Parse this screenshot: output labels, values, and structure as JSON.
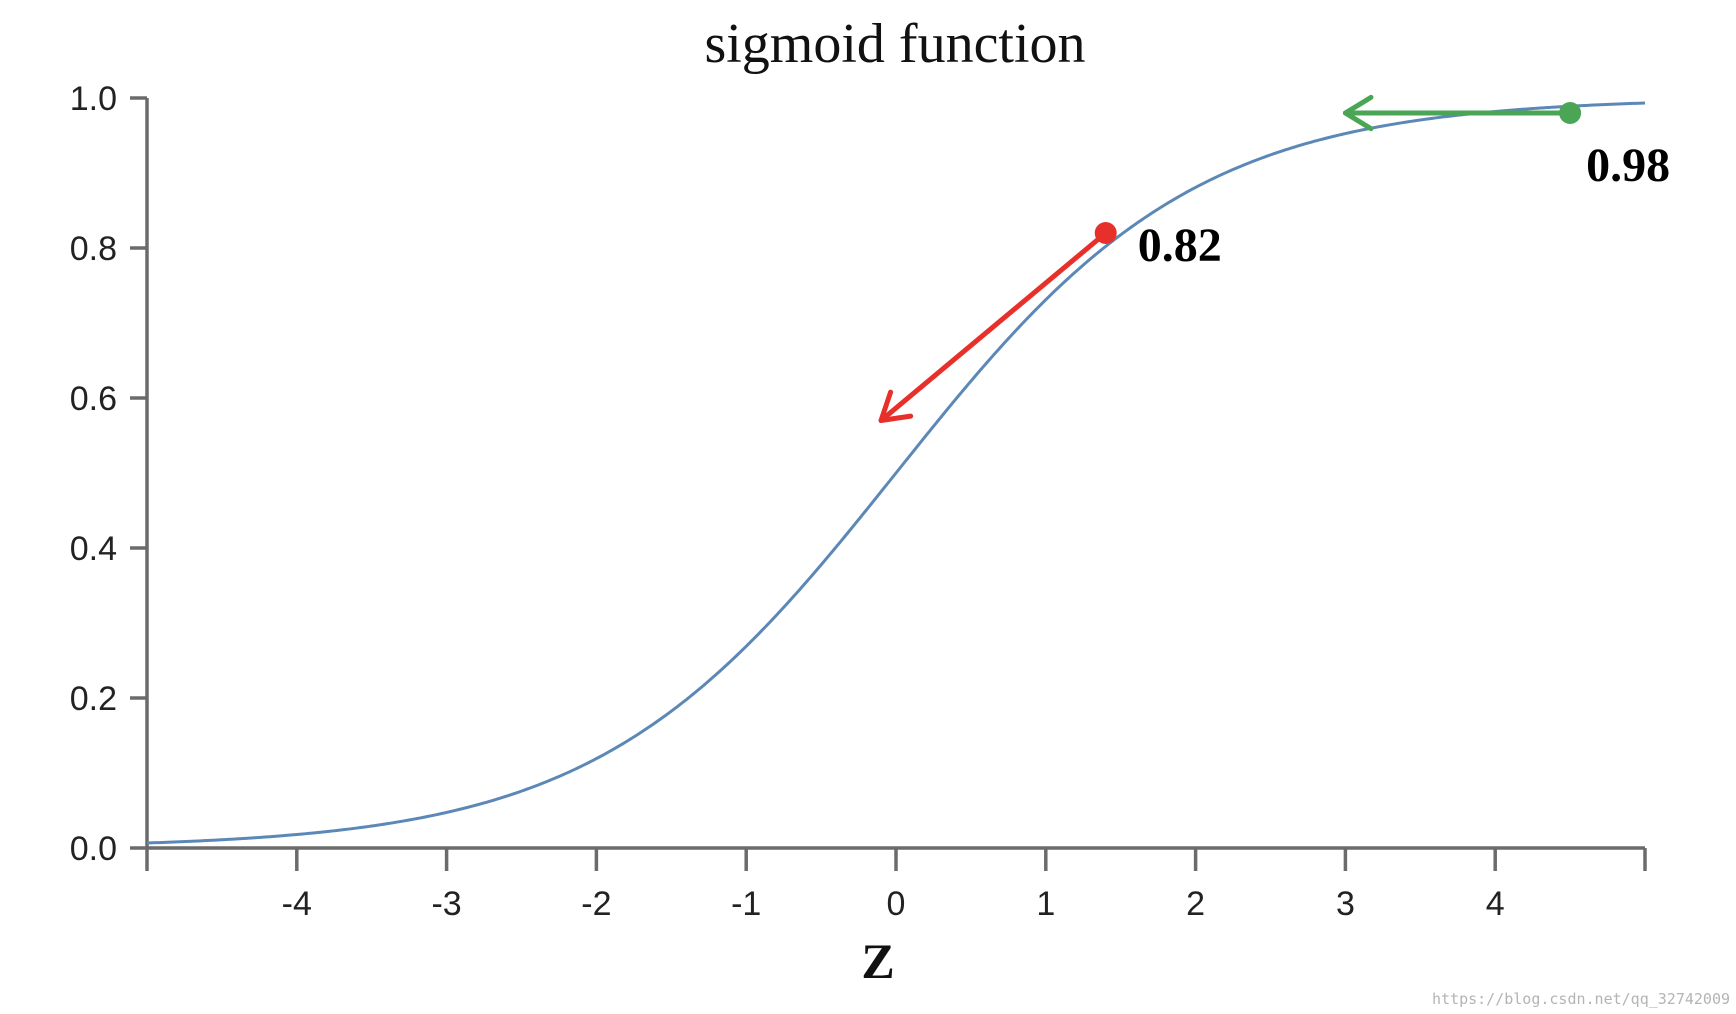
{
  "chart_data": {
    "type": "line",
    "title": "sigmoid function",
    "xlabel": "Z",
    "ylabel": "",
    "xlim": [
      -5,
      5
    ],
    "ylim": [
      0,
      1
    ],
    "x_ticks": [
      -4,
      -3,
      -2,
      -1,
      0,
      1,
      2,
      3,
      4
    ],
    "y_ticks": [
      "0.0",
      "0.2",
      "0.4",
      "0.6",
      "0.8",
      "1.0"
    ],
    "series": [
      {
        "function": "sigmoid",
        "color": "#5b88b6",
        "x": [
          -5,
          -4.5,
          -4,
          -3.5,
          -3,
          -2.5,
          -2,
          -1.5,
          -1,
          -0.5,
          0,
          0.5,
          1,
          1.5,
          2,
          2.5,
          3,
          3.5,
          4,
          4.5,
          5
        ],
        "y": [
          0.007,
          0.011,
          0.018,
          0.029,
          0.047,
          0.076,
          0.119,
          0.182,
          0.269,
          0.378,
          0.5,
          0.622,
          0.731,
          0.818,
          0.881,
          0.924,
          0.953,
          0.971,
          0.982,
          0.989,
          0.993
        ]
      }
    ],
    "annotations": [
      {
        "label": "0.98",
        "x": 4.5,
        "y": 0.98,
        "color": "#4aa655",
        "arrow_to": {
          "x": 3.0,
          "y": 0.98
        }
      },
      {
        "label": "0.82",
        "x": 1.4,
        "y": 0.82,
        "color": "#e8302a",
        "arrow_to": {
          "x": -0.1,
          "y": 0.57
        }
      }
    ]
  },
  "watermark": "https://blog.csdn.net/qq_32742009"
}
